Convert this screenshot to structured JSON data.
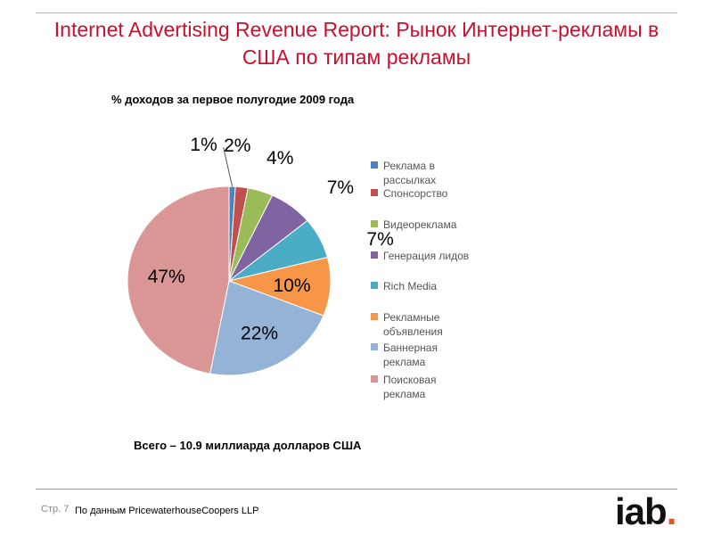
{
  "title": "Internet Advertising Revenue Report: Рынок Интернет-рекламы в США по типам рекламы",
  "subtitle": "% доходов за первое полугодие 2009 года",
  "total": "Всего – 10.9 миллиарда долларов США",
  "footer": {
    "page": "Стр. 7",
    "source": "По данным PricewaterhouseCoopers LLP"
  },
  "logo": {
    "text": "iab",
    "dot": ".",
    "accent": "#e8531d"
  },
  "chart_data": {
    "type": "pie",
    "start_angle_deg": 0,
    "direction": "clockwise",
    "legend_position": "right",
    "series": [
      {
        "name": "Реклама в рассылках",
        "legend_lines": [
          "Реклама в",
          "рассылках"
        ],
        "value": 1,
        "label": "1%",
        "color": "#4f81bd"
      },
      {
        "name": "Спонсорство",
        "legend_lines": [
          "Спонсорство"
        ],
        "value": 2,
        "label": "2%",
        "color": "#c0504d"
      },
      {
        "name": "Видеореклама",
        "legend_lines": [
          "Видеореклама"
        ],
        "value": 4,
        "label": "4%",
        "color": "#9bbb59"
      },
      {
        "name": "Генерация лидов",
        "legend_lines": [
          "Генерация лидов"
        ],
        "value": 7,
        "label": "7%",
        "color": "#8064a2"
      },
      {
        "name": "Rich Media",
        "legend_lines": [
          "Rich Media"
        ],
        "value": 7,
        "label": "7%",
        "color": "#4bacc6"
      },
      {
        "name": "Рекламные объявления",
        "legend_lines": [
          "Рекламные",
          "объявления"
        ],
        "value": 10,
        "label": "10%",
        "color": "#f79646"
      },
      {
        "name": "Баннерная реклама",
        "legend_lines": [
          "Баннерная",
          "реклама"
        ],
        "value": 22,
        "label": "22%",
        "color": "#95b3d7"
      },
      {
        "name": "Поисковая реклама",
        "legend_lines": [
          "Поисковая",
          "реклама"
        ],
        "value": 47,
        "label": "47%",
        "color": "#d99694"
      }
    ]
  }
}
